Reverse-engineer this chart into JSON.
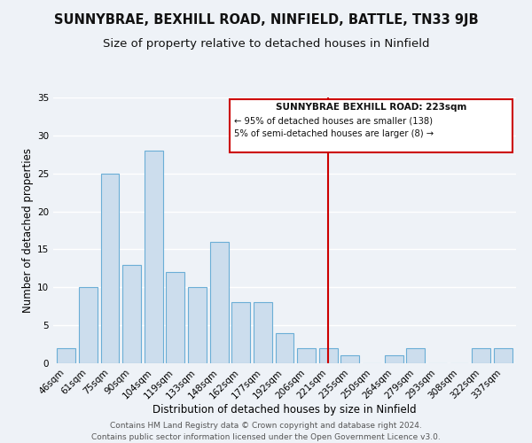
{
  "title": "SUNNYBRAE, BEXHILL ROAD, NINFIELD, BATTLE, TN33 9JB",
  "subtitle": "Size of property relative to detached houses in Ninfield",
  "xlabel": "Distribution of detached houses by size in Ninfield",
  "ylabel": "Number of detached properties",
  "bar_labels": [
    "46sqm",
    "61sqm",
    "75sqm",
    "90sqm",
    "104sqm",
    "119sqm",
    "133sqm",
    "148sqm",
    "162sqm",
    "177sqm",
    "192sqm",
    "206sqm",
    "221sqm",
    "235sqm",
    "250sqm",
    "264sqm",
    "279sqm",
    "293sqm",
    "308sqm",
    "322sqm",
    "337sqm"
  ],
  "bar_values": [
    2,
    10,
    25,
    13,
    28,
    12,
    10,
    16,
    8,
    8,
    4,
    2,
    2,
    1,
    0,
    1,
    2,
    0,
    0,
    2,
    2
  ],
  "bar_color": "#ccdded",
  "bar_edge_color": "#6baed6",
  "vline_x_idx": 12,
  "vline_color": "#cc0000",
  "ylim": [
    0,
    35
  ],
  "yticks": [
    0,
    5,
    10,
    15,
    20,
    25,
    30,
    35
  ],
  "annotation_title": "SUNNYBRAE BEXHILL ROAD: 223sqm",
  "annotation_line1": "← 95% of detached houses are smaller (138)",
  "annotation_line2": "5% of semi-detached houses are larger (8) →",
  "footer1": "Contains HM Land Registry data © Crown copyright and database right 2024.",
  "footer2": "Contains public sector information licensed under the Open Government Licence v3.0.",
  "background_color": "#eef2f7",
  "grid_color": "#ffffff",
  "title_fontsize": 10.5,
  "subtitle_fontsize": 9.5,
  "axis_label_fontsize": 8.5,
  "tick_fontsize": 7.5,
  "footer_fontsize": 6.5
}
